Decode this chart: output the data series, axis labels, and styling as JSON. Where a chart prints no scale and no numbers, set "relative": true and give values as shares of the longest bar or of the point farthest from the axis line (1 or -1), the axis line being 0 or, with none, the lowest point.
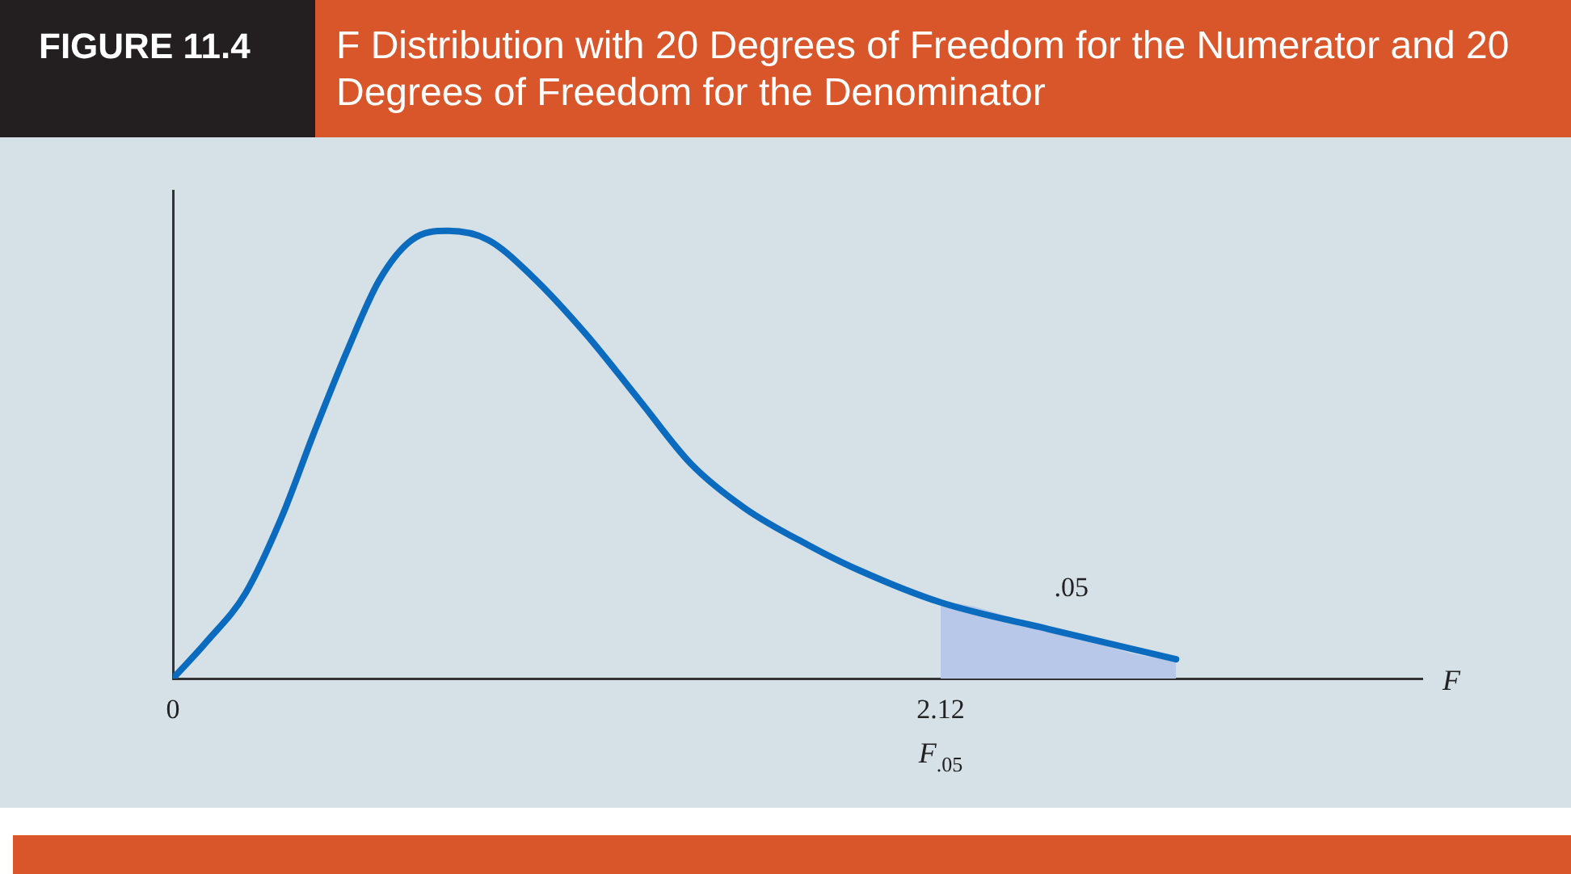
{
  "chart_data": {
    "type": "line",
    "title": "FIGURE 11.4",
    "subtitle": "F Distribution with 20 Degrees of Freedom for the Numerator and 20 Degrees of Freedom for the Denominator",
    "xlabel": "F",
    "relative": true,
    "xlim": [
      0,
      3.45
    ],
    "xticks": [
      0,
      2.12
    ],
    "tick_labels": "x",
    "marker": "none",
    "series": [
      {
        "type": "area",
        "color": "#b8c8e8",
        "x": [
          2.12,
          2.12,
          2.42,
          2.77,
          2.77
        ],
        "values": [
          0,
          0.17,
          0.11,
          0.043,
          0
        ]
      },
      {
        "color": "#0b6bbf",
        "x": [
          0,
          0.095,
          0.2,
          0.3,
          0.39,
          0.48,
          0.57,
          0.66,
          0.76,
          0.87,
          0.99,
          1.14,
          1.29,
          1.43,
          1.58,
          1.75,
          1.9,
          2.12,
          2.42,
          2.77
        ],
        "values": [
          0,
          0.084,
          0.19,
          0.36,
          0.55,
          0.73,
          0.89,
          0.98,
          1,
          0.98,
          0.9,
          0.77,
          0.62,
          0.48,
          0.38,
          0.3,
          0.24,
          0.17,
          0.11,
          0.043
        ]
      }
    ],
    "annotations": [
      ".05",
      "F$_{.05}$"
    ]
  }
}
